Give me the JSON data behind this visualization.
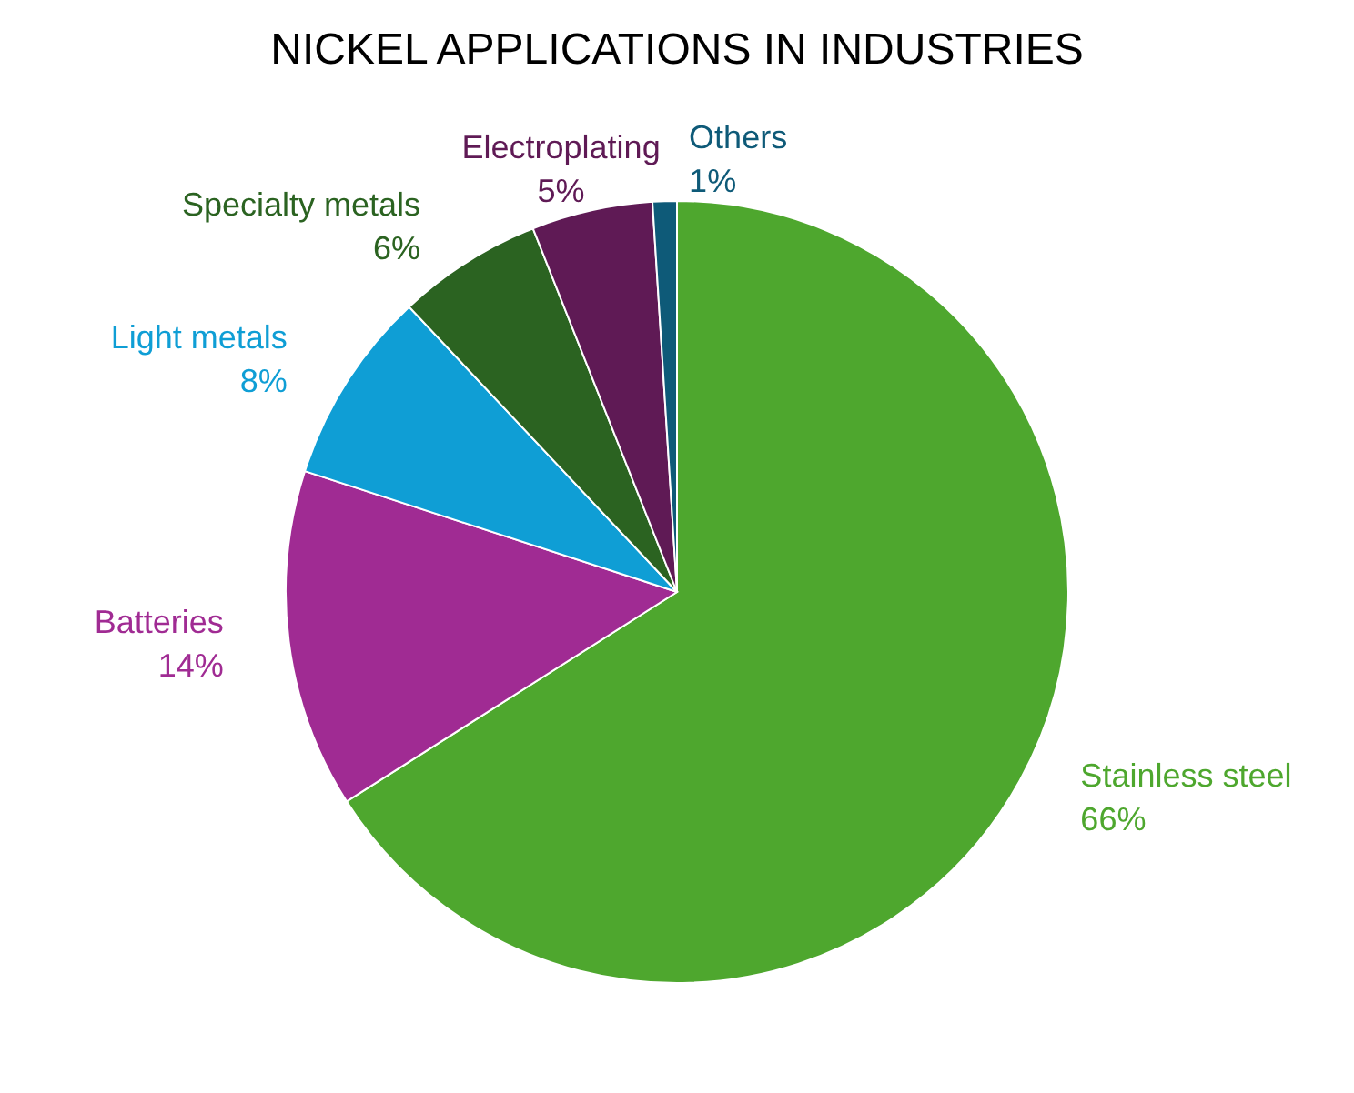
{
  "chart_data": {
    "type": "pie",
    "title": "NICKEL APPLICATIONS IN INDUSTRIES",
    "categories": [
      "Stainless steel",
      "Batteries",
      "Light metals",
      "Specialty metals",
      "Electroplating",
      "Others"
    ],
    "values": [
      66,
      14,
      8,
      6,
      5,
      1
    ],
    "value_labels": [
      "66%",
      "14%",
      "8%",
      "6%",
      "5%",
      "1%"
    ],
    "colors": [
      "#4ea72e",
      "#a02b93",
      "#0f9ed5",
      "#2b6321",
      "#5f1a55",
      "#0e5a78"
    ],
    "legend": false
  }
}
